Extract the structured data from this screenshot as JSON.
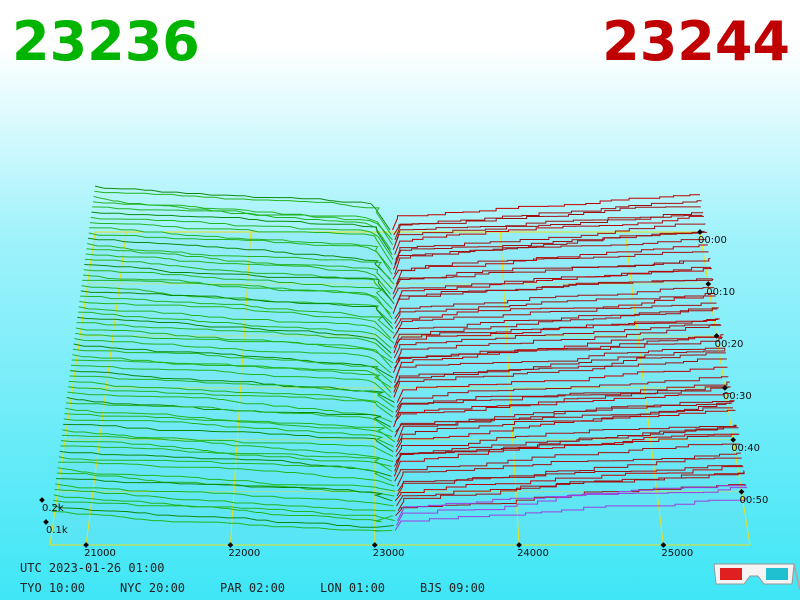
{
  "header": {
    "bid": "23236",
    "ask": "23244"
  },
  "price_axis": {
    "ticks": [
      21000,
      22000,
      23000,
      24000,
      25000
    ]
  },
  "time_axis": {
    "ticks": [
      "00:00",
      "00:10",
      "00:20",
      "00:30",
      "00:40",
      "00:50"
    ]
  },
  "depth_axis": {
    "ticks": [
      "0.2k",
      "0.1k"
    ]
  },
  "footer": {
    "utc": "UTC 2023-01-26 01:00",
    "cities": [
      "TYO 10:00",
      "NYC 20:00",
      "PAR 02:00",
      "LON 01:00",
      "BJS 09:00"
    ]
  }
}
